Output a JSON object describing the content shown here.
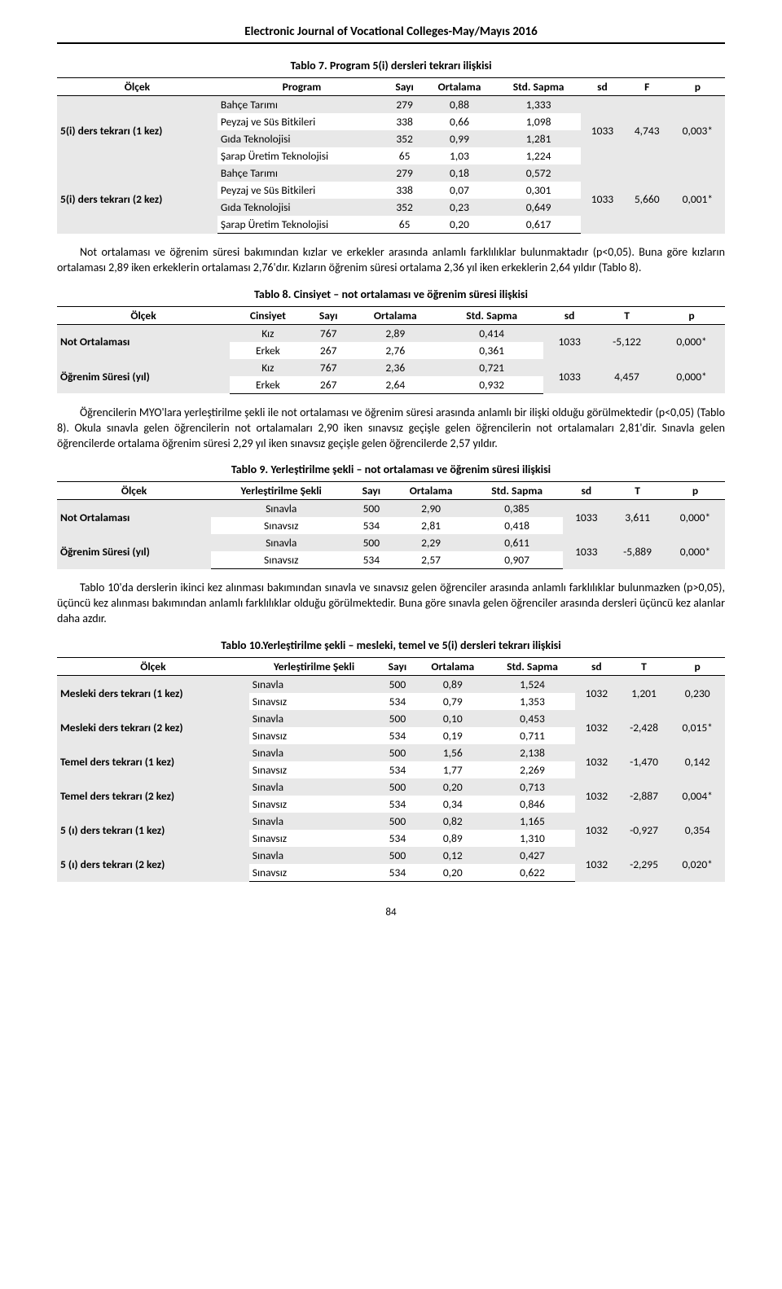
{
  "journal_title": "Electronic Journal of Vocational Colleges-May/Mayıs 2016",
  "page_number": "84",
  "tablo7": {
    "title": "Tablo 7. Program 5(i) dersleri tekrarı ilişkisi",
    "head": {
      "c0": "Ölçek",
      "c1": "Program",
      "c2": "Sayı",
      "c3": "Ortalama",
      "c4": "Std. Sapma",
      "c5": "sd",
      "c6": "F",
      "c7": "p"
    },
    "grp1_label": "5(i) ders tekrarı (1 kez)",
    "grp1_rows": [
      {
        "c1": "Bahçe Tarımı",
        "c2": "279",
        "c3": "0,88",
        "c4": "1,333"
      },
      {
        "c1": "Peyzaj ve Süs Bitkileri",
        "c2": "338",
        "c3": "0,66",
        "c4": "1,098"
      },
      {
        "c1": "Gıda Teknolojisi",
        "c2": "352",
        "c3": "0,99",
        "c4": "1,281"
      },
      {
        "c1": "Şarap Üretim Teknolojisi",
        "c2": "65",
        "c3": "1,03",
        "c4": "1,224"
      }
    ],
    "grp1_stats": {
      "sd": "1033",
      "F": "4,743",
      "p": "0,003*"
    },
    "grp2_label": "5(i) ders tekrarı (2 kez)",
    "grp2_rows": [
      {
        "c1": "Bahçe Tarımı",
        "c2": "279",
        "c3": "0,18",
        "c4": "0,572"
      },
      {
        "c1": "Peyzaj ve Süs Bitkileri",
        "c2": "338",
        "c3": "0,07",
        "c4": "0,301"
      },
      {
        "c1": "Gıda Teknolojisi",
        "c2": "352",
        "c3": "0,23",
        "c4": "0,649"
      },
      {
        "c1": "Şarap Üretim Teknolojisi",
        "c2": "65",
        "c3": "0,20",
        "c4": "0,617"
      }
    ],
    "grp2_stats": {
      "sd": "1033",
      "F": "5,660",
      "p": "0,001*"
    }
  },
  "para1": "Not ortalaması ve öğrenim süresi bakımından kızlar ve erkekler arasında anlamlı farklılıklar bulunmaktadır (p<0,05). Buna göre kızların ortalaması 2,89 iken erkeklerin ortalaması 2,76'dır. Kızların öğrenim süresi ortalama 2,36 yıl iken erkeklerin 2,64 yıldır (Tablo 8).",
  "tablo8": {
    "title": "Tablo 8. Cinsiyet – not ortalaması ve öğrenim süresi ilişkisi",
    "head": {
      "c0": "Ölçek",
      "c1": "Cinsiyet",
      "c2": "Sayı",
      "c3": "Ortalama",
      "c4": "Std. Sapma",
      "c5": "sd",
      "c6": "T",
      "c7": "p"
    },
    "grp1_label": "Not Ortalaması",
    "grp1_rows": [
      {
        "c1": "Kız",
        "c2": "767",
        "c3": "2,89",
        "c4": "0,414"
      },
      {
        "c1": "Erkek",
        "c2": "267",
        "c3": "2,76",
        "c4": "0,361"
      }
    ],
    "grp1_stats": {
      "sd": "1033",
      "T": "-5,122",
      "p": "0,000*"
    },
    "grp2_label": "Öğrenim Süresi (yıl)",
    "grp2_rows": [
      {
        "c1": "Kız",
        "c2": "767",
        "c3": "2,36",
        "c4": "0,721"
      },
      {
        "c1": "Erkek",
        "c2": "267",
        "c3": "2,64",
        "c4": "0,932"
      }
    ],
    "grp2_stats": {
      "sd": "1033",
      "T": "4,457",
      "p": "0,000*"
    }
  },
  "para2": "Öğrencilerin MYO'lara yerleştirilme şekli ile not ortalaması ve öğrenim süresi arasında anlamlı bir ilişki olduğu görülmektedir (p<0,05) (Tablo 8). Okula sınavla gelen öğrencilerin not ortalamaları 2,90 iken sınavsız geçişle gelen öğrencilerin not ortalamaları 2,81'dir. Sınavla gelen öğrencilerde ortalama öğrenim süresi 2,29 yıl iken sınavsız geçişle gelen öğrencilerde 2,57 yıldır.",
  "tablo9": {
    "title": "Tablo 9. Yerleştirilme şekli – not ortalaması ve öğrenim süresi ilişkisi",
    "head": {
      "c0": "Ölçek",
      "c1": "Yerleştirilme Şekli",
      "c2": "Sayı",
      "c3": "Ortalama",
      "c4": "Std. Sapma",
      "c5": "sd",
      "c6": "T",
      "c7": "p"
    },
    "grp1_label": "Not Ortalaması",
    "grp1_rows": [
      {
        "c1": "Sınavla",
        "c2": "500",
        "c3": "2,90",
        "c4": "0,385"
      },
      {
        "c1": "Sınavsız",
        "c2": "534",
        "c3": "2,81",
        "c4": "0,418"
      }
    ],
    "grp1_stats": {
      "sd": "1033",
      "T": "3,611",
      "p": "0,000*"
    },
    "grp2_label": "Öğrenim Süresi (yıl)",
    "grp2_rows": [
      {
        "c1": "Sınavla",
        "c2": "500",
        "c3": "2,29",
        "c4": "0,611"
      },
      {
        "c1": "Sınavsız",
        "c2": "534",
        "c3": "2,57",
        "c4": "0,907"
      }
    ],
    "grp2_stats": {
      "sd": "1033",
      "T": "-5,889",
      "p": "0,000*"
    }
  },
  "para3": "Tablo 10'da derslerin ikinci kez alınması bakımından sınavla ve sınavsız gelen öğrenciler arasında anlamlı farklılıklar bulunmazken (p>0,05), üçüncü kez alınması bakımından anlamlı farklılıklar olduğu görülmektedir. Buna göre sınavla gelen öğrenciler arasında dersleri üçüncü kez alanlar daha azdır.",
  "tablo10": {
    "title": "Tablo 10.Yerleştirilme şekli – mesleki, temel ve 5(i) dersleri tekrarı ilişkisi",
    "head": {
      "c0": "Ölçek",
      "c1": "Yerleştirilme Şekli",
      "c2": "Sayı",
      "c3": "Ortalama",
      "c4": "Std. Sapma",
      "c5": "sd",
      "c6": "T",
      "c7": "p"
    },
    "groups": [
      {
        "label": "Mesleki ders tekrarı (1 kez)",
        "rows": [
          {
            "c1": "Sınavla",
            "c2": "500",
            "c3": "0,89",
            "c4": "1,524"
          },
          {
            "c1": "Sınavsız",
            "c2": "534",
            "c3": "0,79",
            "c4": "1,353"
          }
        ],
        "stats": {
          "sd": "1032",
          "T": "1,201",
          "p": "0,230"
        }
      },
      {
        "label": "Mesleki ders tekrarı (2 kez)",
        "rows": [
          {
            "c1": "Sınavla",
            "c2": "500",
            "c3": "0,10",
            "c4": "0,453"
          },
          {
            "c1": "Sınavsız",
            "c2": "534",
            "c3": "0,19",
            "c4": "0,711"
          }
        ],
        "stats": {
          "sd": "1032",
          "T": "-2,428",
          "p": "0,015*"
        }
      },
      {
        "label": "Temel ders tekrarı (1 kez)",
        "rows": [
          {
            "c1": "Sınavla",
            "c2": "500",
            "c3": "1,56",
            "c4": "2,138"
          },
          {
            "c1": "Sınavsız",
            "c2": "534",
            "c3": "1,77",
            "c4": "2,269"
          }
        ],
        "stats": {
          "sd": "1032",
          "T": "-1,470",
          "p": "0,142"
        }
      },
      {
        "label": "Temel ders tekrarı (2 kez)",
        "rows": [
          {
            "c1": "Sınavla",
            "c2": "500",
            "c3": "0,20",
            "c4": "0,713"
          },
          {
            "c1": "Sınavsız",
            "c2": "534",
            "c3": "0,34",
            "c4": "0,846"
          }
        ],
        "stats": {
          "sd": "1032",
          "T": "-2,887",
          "p": "0,004*"
        }
      },
      {
        "label": "5 (ı) ders tekrarı (1 kez)",
        "rows": [
          {
            "c1": "Sınavla",
            "c2": "500",
            "c3": "0,82",
            "c4": "1,165"
          },
          {
            "c1": "Sınavsız",
            "c2": "534",
            "c3": "0,89",
            "c4": "1,310"
          }
        ],
        "stats": {
          "sd": "1032",
          "T": "-0,927",
          "p": "0,354"
        }
      },
      {
        "label": "5 (ı) ders tekrarı (2 kez)",
        "rows": [
          {
            "c1": "Sınavla",
            "c2": "500",
            "c3": "0,12",
            "c4": "0,427"
          },
          {
            "c1": "Sınavsız",
            "c2": "534",
            "c3": "0,20",
            "c4": "0,622"
          }
        ],
        "stats": {
          "sd": "1032",
          "T": "-2,295",
          "p": "0,020*"
        }
      }
    ]
  }
}
